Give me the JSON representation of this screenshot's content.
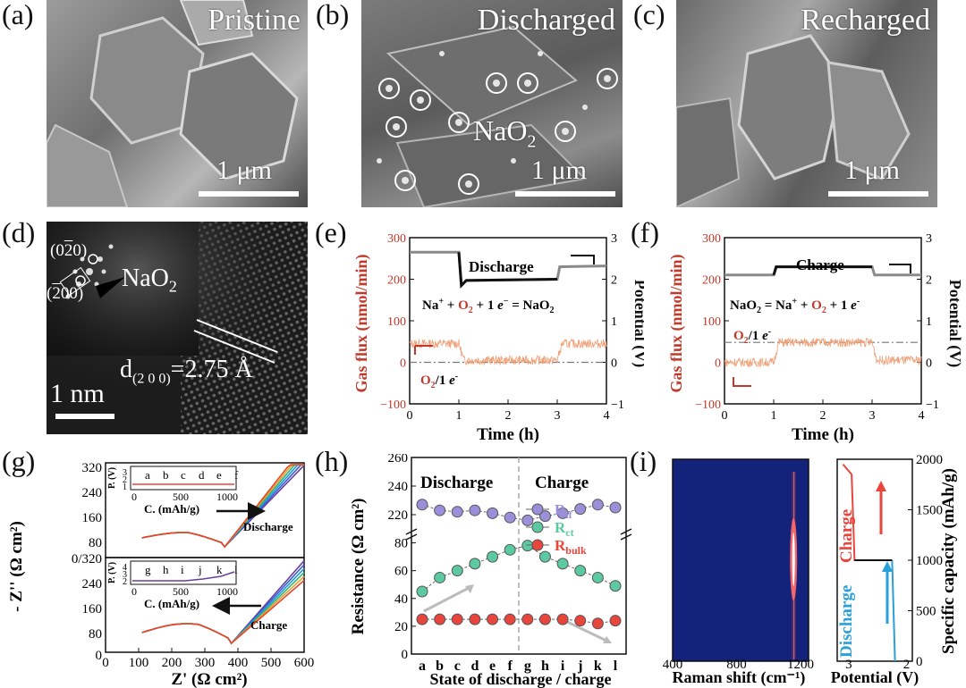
{
  "figure": {
    "panel_labels": [
      "(a)",
      "(b)",
      "(c)",
      "(d)",
      "(e)",
      "(f)",
      "(g)",
      "(h)",
      "(i)"
    ],
    "a": {
      "title": "Pristine",
      "scale": "1 μm"
    },
    "b": {
      "title": "Discharged",
      "scale": "1 μm",
      "annotation": "NaO",
      "annotation_sub": "2"
    },
    "c": {
      "title": "Recharged",
      "scale": "1 μm"
    },
    "d": {
      "scale": "1 nm",
      "spot1": "(0",
      "spot1_bar": "2",
      "spot1_end": "0)",
      "spot2": "(",
      "spot2_bar": "2",
      "spot2_end": "00)",
      "phase": "NaO",
      "phase_sub": "2",
      "dspacing_pre": "d",
      "dspacing_sub": "(2 0 0)",
      "dspacing_post": "=2.75 Å"
    }
  },
  "chart_data": [
    {
      "panel": "e",
      "type": "line",
      "xlabel": "Time (h)",
      "ylabel": "Gas flux (nmol/min)",
      "y2label": "Potential (V)",
      "xlim": [
        0,
        4
      ],
      "ylim": [
        -100,
        300
      ],
      "y2lim": [
        -1,
        3
      ],
      "xticks": [
        "0",
        "1",
        "2",
        "3",
        "4"
      ],
      "yticks": [
        "−100",
        "0",
        "100",
        "200",
        "300"
      ],
      "y2ticks": [
        "−1",
        "0",
        "1",
        "2",
        "3"
      ],
      "label_top": "Discharge",
      "equation": {
        "p1": "Na",
        "p1_sup": "+",
        "p2": " + ",
        "o2": "O",
        "o2_sub": "2",
        "p3": " + 1 ",
        "e": "e",
        "e_sup": "−",
        "p4": " = NaO",
        "p4_sub": "2"
      },
      "ref_label": {
        "o": "O",
        "o_sub": "2",
        "rest": "/1 ",
        "e": "e",
        "e_sup": "-"
      },
      "series": [
        {
          "name": "Potential",
          "x": [
            0,
            1.0,
            1.05,
            1.15,
            3.0,
            3.05,
            4.0
          ],
          "y": [
            2.65,
            2.65,
            1.85,
            1.97,
            2.0,
            2.3,
            2.32
          ]
        },
        {
          "name": "Gas flux",
          "x": [
            0,
            1.0,
            1.1,
            3.0,
            3.1,
            4.0
          ],
          "y": [
            45,
            45,
            5,
            5,
            45,
            45
          ]
        }
      ],
      "reference_line_y": 0
    },
    {
      "panel": "f",
      "type": "line",
      "xlabel": "Time (h)",
      "ylabel": "Gas flux (nmol/min)",
      "y2label": "Potential (V)",
      "xlim": [
        0,
        4
      ],
      "ylim": [
        -100,
        300
      ],
      "y2lim": [
        -1,
        3
      ],
      "xticks": [
        "0",
        "1",
        "2",
        "3",
        "4"
      ],
      "yticks": [
        "−100",
        "0",
        "100",
        "200",
        "300"
      ],
      "y2ticks": [
        "−1",
        "0",
        "1",
        "2",
        "3"
      ],
      "label_top": "Charge",
      "equation": {
        "p0": "NaO",
        "p0_sub": "2",
        "p1": " = Na",
        "p1_sup": "+",
        "p2": " + ",
        "o2": "O",
        "o2_sub": "2",
        "p3": " + 1 ",
        "e": "e",
        "e_sup": "-"
      },
      "ref_label": {
        "o": "O",
        "o_sub": "2",
        "rest": "/1 ",
        "e": "e",
        "e_sup": "-"
      },
      "series": [
        {
          "name": "Potential",
          "x": [
            0,
            1.0,
            1.05,
            3.0,
            3.05,
            4.0
          ],
          "y": [
            2.1,
            2.1,
            2.3,
            2.3,
            2.1,
            2.1
          ]
        },
        {
          "name": "Gas flux",
          "x": [
            0,
            1.0,
            1.1,
            3.0,
            3.1,
            4.0
          ],
          "y": [
            0,
            0,
            48,
            48,
            5,
            5
          ]
        }
      ],
      "reference_line_y": 48
    },
    {
      "panel": "g",
      "type": "line",
      "xlabel": "Z' (Ω cm²)",
      "ylabel": "- Z'' (Ω cm²)",
      "xlim": [
        0,
        600
      ],
      "xticks": [
        "0",
        "100",
        "200",
        "300",
        "400",
        "500",
        "600"
      ],
      "yticks_top": [
        "320",
        "240",
        "160",
        "80"
      ],
      "yticks_bottom": [
        "240",
        "160",
        "80",
        "0"
      ],
      "ytick_mid": "0/320",
      "label_top": "Discharge",
      "label_bottom": "Charge",
      "inset": {
        "ylabel": "P. (V)",
        "xlabel": "C. (mAh/g)",
        "xticks": [
          "0",
          "500",
          "1000"
        ],
        "top_letters": [
          "a",
          "b",
          "c",
          "d",
          "e",
          "f"
        ],
        "top_yticks": [
          "3",
          "2",
          "1"
        ],
        "bottom_letters": [
          "g",
          "h",
          "i",
          "j",
          "k",
          "l"
        ],
        "bottom_yticks": [
          "4",
          "3",
          "2"
        ]
      },
      "series_colors": [
        "#6a3d9a",
        "#3b5bdb",
        "#1f9bd7",
        "#2fb37d",
        "#e6a02a",
        "#e8452c"
      ]
    },
    {
      "panel": "h",
      "type": "scatter",
      "xlabel": "State of discharge / charge",
      "ylabel": "Resistance (Ω cm²)",
      "categories": [
        "a",
        "b",
        "c",
        "d",
        "e",
        "f",
        "g",
        "h",
        "i",
        "j",
        "k",
        "l"
      ],
      "yticks_lower": [
        "0",
        "20",
        "40",
        "60",
        "80"
      ],
      "yticks_upper": [
        "220",
        "240",
        "260"
      ],
      "label_left": "Discharge",
      "label_right": "Charge",
      "series": [
        {
          "name": "R",
          "sub": "if",
          "color": "#9a8fd8",
          "values": [
            227,
            223,
            222,
            223,
            221,
            218,
            216,
            219,
            221,
            224,
            227,
            225
          ]
        },
        {
          "name": "R",
          "sub": "ct",
          "color": "#5cc9a0",
          "values": [
            45,
            55,
            60,
            65,
            70,
            75,
            78,
            70,
            65,
            60,
            55,
            49
          ]
        },
        {
          "name": "R",
          "sub": "bulk",
          "color": "#e8453c",
          "values": [
            25,
            25,
            25,
            25,
            25,
            25,
            25,
            25,
            25,
            24,
            22,
            24
          ]
        }
      ]
    },
    {
      "panel": "i",
      "type": "heatmap",
      "xlabel": "Raman shift (cm⁻¹)",
      "xticks": [
        "400",
        "800",
        "1200"
      ],
      "side_xlabel": "Potential (V)",
      "side_xticks": [
        "3",
        "2"
      ],
      "ylabel": "Specific capacity (mAh/g)",
      "yticks": [
        "0",
        "500",
        "1000",
        "1500",
        "2000"
      ],
      "label_discharge": "Discharge",
      "label_charge": "Charge",
      "peak_x": 1156,
      "potential_curve": {
        "capacity": [
          0,
          950,
          1000,
          1050,
          1850,
          1950,
          2000
        ],
        "potential": [
          2.2,
          2.25,
          2.6,
          2.9,
          2.95,
          3.05,
          3.1
        ]
      }
    }
  ]
}
